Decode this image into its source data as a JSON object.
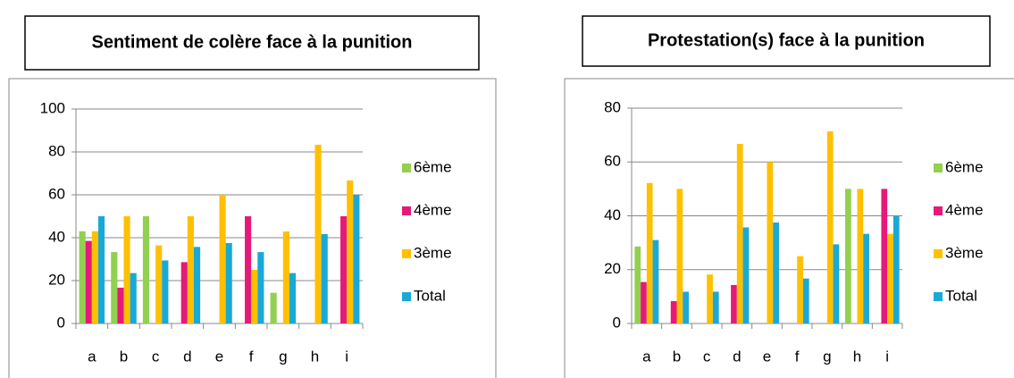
{
  "chart_data": [
    {
      "type": "bar",
      "title": "Sentiment de colère face à la punition",
      "categories": [
        "a",
        "b",
        "c",
        "d",
        "e",
        "f",
        "g",
        "h",
        "i"
      ],
      "series": [
        {
          "name": "6ème",
          "color": "#92d050",
          "values": [
            43,
            33.3,
            50,
            0,
            0,
            0,
            14.3,
            0,
            0
          ]
        },
        {
          "name": "4ème",
          "color": "#e6197a",
          "values": [
            38.5,
            16.7,
            0,
            28.6,
            0,
            50,
            0,
            0,
            50
          ]
        },
        {
          "name": "3ème",
          "color": "#ffc000",
          "values": [
            43,
            50,
            36.4,
            50,
            60,
            25,
            42.9,
            83.3,
            66.7
          ]
        },
        {
          "name": "Total",
          "color": "#1aa9d6",
          "values": [
            50,
            23.5,
            29.4,
            35.7,
            37.5,
            33.3,
            23.5,
            41.7,
            60
          ]
        }
      ],
      "ylim": [
        0,
        100
      ],
      "yticks": [
        0,
        20,
        40,
        60,
        80,
        100
      ],
      "grid": true,
      "legend": "right"
    },
    {
      "type": "bar",
      "title": "Protestation(s) face à la punition",
      "categories": [
        "a",
        "b",
        "c",
        "d",
        "e",
        "f",
        "g",
        "h",
        "i"
      ],
      "series": [
        {
          "name": "6ème",
          "color": "#92d050",
          "values": [
            28.6,
            0,
            0,
            0,
            0,
            0,
            0,
            50,
            0
          ]
        },
        {
          "name": "4ème",
          "color": "#e6197a",
          "values": [
            15.4,
            8.3,
            0,
            14.3,
            0,
            0,
            0,
            0,
            50
          ]
        },
        {
          "name": "3ème",
          "color": "#ffc000",
          "values": [
            52.2,
            50,
            18.2,
            66.7,
            60,
            25,
            71.4,
            50,
            33.3
          ]
        },
        {
          "name": "Total",
          "color": "#1aa9d6",
          "values": [
            31,
            11.8,
            11.8,
            35.7,
            37.5,
            16.7,
            29.4,
            33.3,
            40
          ]
        }
      ],
      "ylim": [
        0,
        80
      ],
      "yticks": [
        0,
        20,
        40,
        60,
        80
      ],
      "grid": true,
      "legend": "right"
    }
  ]
}
